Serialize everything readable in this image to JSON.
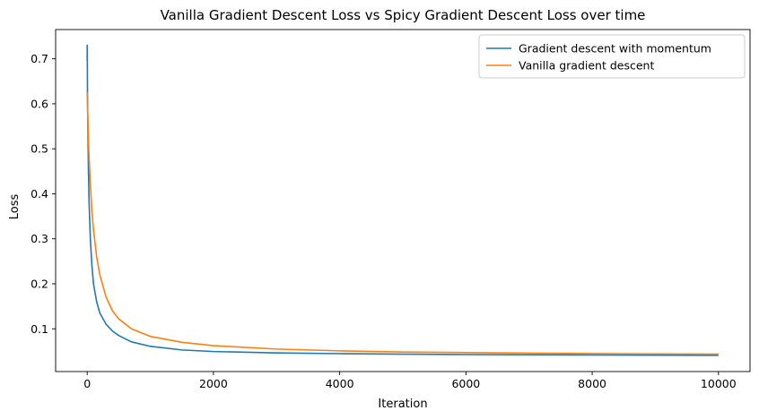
{
  "chart_data": {
    "type": "line",
    "title": "Vanilla Gradient Descent Loss vs Spicy Gradient Descent Loss over time",
    "xlabel": "Iteration",
    "ylabel": "Loss",
    "xlim": [
      -500,
      10500
    ],
    "ylim": [
      0.005,
      0.765
    ],
    "xticks": [
      0,
      2000,
      4000,
      6000,
      8000,
      10000
    ],
    "yticks": [
      0.1,
      0.2,
      0.3,
      0.4,
      0.5,
      0.6,
      0.7
    ],
    "grid": false,
    "legend_position": "upper right",
    "series": [
      {
        "name": "Gradient descent with momentum",
        "color": "#1f77b4",
        "x": [
          0,
          1,
          2,
          3,
          5,
          10,
          20,
          30,
          50,
          75,
          100,
          150,
          200,
          300,
          400,
          500,
          700,
          1000,
          1500,
          2000,
          3000,
          4000,
          5000,
          6000,
          7000,
          8000,
          9000,
          10000
        ],
        "y": [
          0.695,
          0.73,
          0.72,
          0.68,
          0.62,
          0.55,
          0.45,
          0.38,
          0.3,
          0.24,
          0.2,
          0.16,
          0.135,
          0.11,
          0.095,
          0.085,
          0.071,
          0.061,
          0.053,
          0.0495,
          0.0465,
          0.0448,
          0.0437,
          0.0428,
          0.0422,
          0.0418,
          0.0414,
          0.041
        ]
      },
      {
        "name": "Vanilla gradient descent",
        "color": "#ff7f0e",
        "x": [
          0,
          5,
          10,
          20,
          30,
          50,
          75,
          100,
          150,
          200,
          300,
          400,
          500,
          700,
          1000,
          1500,
          2000,
          3000,
          4000,
          5000,
          6000,
          7000,
          8000,
          9000,
          10000
        ],
        "y": [
          0.625,
          0.6,
          0.57,
          0.52,
          0.48,
          0.42,
          0.36,
          0.32,
          0.26,
          0.22,
          0.17,
          0.14,
          0.122,
          0.1,
          0.083,
          0.07,
          0.0625,
          0.055,
          0.051,
          0.0485,
          0.0472,
          0.046,
          0.045,
          0.0443,
          0.0437
        ]
      }
    ]
  }
}
